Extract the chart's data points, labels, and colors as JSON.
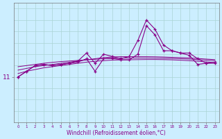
{
  "xlabel": "Windchill (Refroidissement éolien,°C)",
  "background_color": "#cceeff",
  "grid_color": "#aad4d4",
  "line_color": "#880088",
  "x": [
    0,
    1,
    2,
    3,
    4,
    5,
    6,
    7,
    8,
    9,
    10,
    11,
    12,
    13,
    14,
    15,
    16,
    17,
    18,
    19,
    20,
    21,
    22,
    23
  ],
  "windchill": [
    11.0,
    11.5,
    12.0,
    12.1,
    12.0,
    12.1,
    12.2,
    12.3,
    12.6,
    11.5,
    12.6,
    12.65,
    12.5,
    12.5,
    13.0,
    15.5,
    14.7,
    13.3,
    13.3,
    13.1,
    12.9,
    12.1,
    12.2,
    12.2
  ],
  "temp": [
    11.0,
    11.5,
    12.0,
    12.1,
    12.0,
    12.1,
    12.2,
    12.4,
    13.1,
    12.2,
    13.0,
    12.8,
    12.6,
    12.8,
    14.2,
    16.0,
    15.2,
    13.8,
    13.3,
    13.1,
    13.1,
    12.6,
    12.2,
    12.3
  ],
  "trend1": [
    11.6,
    11.75,
    11.9,
    12.0,
    12.1,
    12.2,
    12.3,
    12.4,
    12.5,
    12.6,
    12.7,
    12.75,
    12.78,
    12.78,
    12.78,
    12.78,
    12.77,
    12.75,
    12.72,
    12.7,
    12.67,
    12.62,
    12.57,
    12.52
  ],
  "trend2": [
    11.9,
    12.0,
    12.1,
    12.2,
    12.28,
    12.35,
    12.4,
    12.45,
    12.5,
    12.55,
    12.6,
    12.63,
    12.65,
    12.66,
    12.66,
    12.66,
    12.65,
    12.64,
    12.62,
    12.6,
    12.57,
    12.52,
    12.47,
    12.43
  ],
  "trend3": [
    11.3,
    11.5,
    11.65,
    11.8,
    11.9,
    12.0,
    12.1,
    12.2,
    12.3,
    12.38,
    12.43,
    12.48,
    12.5,
    12.51,
    12.52,
    12.53,
    12.53,
    12.52,
    12.5,
    12.47,
    12.43,
    12.38,
    12.32,
    12.27
  ],
  "ylim": [
    7.0,
    17.5
  ],
  "xlim": [
    -0.5,
    23.5
  ],
  "ytick_val": 11,
  "ytick_label": "11"
}
